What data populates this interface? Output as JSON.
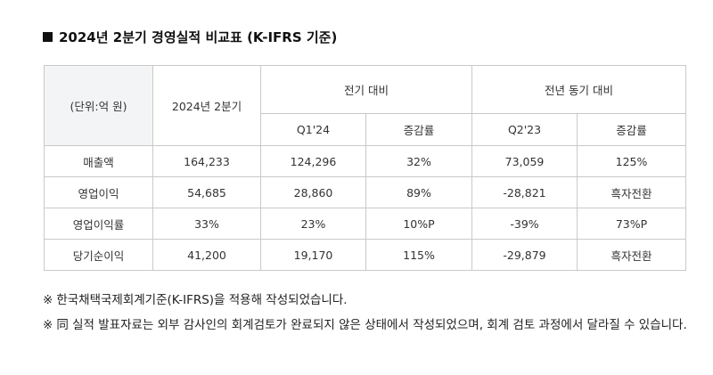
{
  "title": "2024년 2분기 경영실적 비교표 (K-IFRS 기준)",
  "table": {
    "unit_label": "(단위:억 원)",
    "current_label": "2024년 2분기",
    "qoq_label": "전기 대비",
    "yoy_label": "전년 동기 대비",
    "sub_headers": [
      "Q1'24",
      "증감률",
      "Q2'23",
      "증감률"
    ],
    "rows": [
      {
        "label": "매출액",
        "values": [
          "164,233",
          "124,296",
          "32%",
          "73,059",
          "125%"
        ]
      },
      {
        "label": "영업이익",
        "values": [
          "54,685",
          "28,860",
          "89%",
          "-28,821",
          "흑자전환"
        ]
      },
      {
        "label": "영업이익률",
        "values": [
          "33%",
          "23%",
          "10%P",
          "-39%",
          "73%P"
        ]
      },
      {
        "label": "당기순이익",
        "values": [
          "41,200",
          "19,170",
          "115%",
          "-29,879",
          "흑자전환"
        ]
      }
    ]
  },
  "notes": {
    "mark": "※",
    "note1": "한국채택국제회계기준(K-IFRS)을 적용해 작성되었습니다.",
    "note2": "同 실적 발표자료는 외부 감사인의 회계검토가 완료되지 않은 상태에서 작성되었으며, 회계 검토 과정에서 달라질 수 있습니다."
  }
}
